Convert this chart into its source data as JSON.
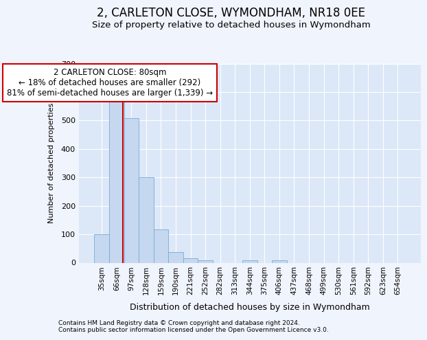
{
  "title": "2, CARLETON CLOSE, WYMONDHAM, NR18 0EE",
  "subtitle": "Size of property relative to detached houses in Wymondham",
  "xlabel": "Distribution of detached houses by size in Wymondham",
  "ylabel": "Number of detached properties",
  "footnote1": "Contains HM Land Registry data © Crown copyright and database right 2024.",
  "footnote2": "Contains public sector information licensed under the Open Government Licence v3.0.",
  "bin_labels": [
    "35sqm",
    "66sqm",
    "97sqm",
    "128sqm",
    "159sqm",
    "190sqm",
    "221sqm",
    "252sqm",
    "282sqm",
    "313sqm",
    "344sqm",
    "375sqm",
    "406sqm",
    "437sqm",
    "468sqm",
    "499sqm",
    "530sqm",
    "561sqm",
    "592sqm",
    "623sqm",
    "654sqm"
  ],
  "bar_values": [
    100,
    575,
    507,
    300,
    118,
    38,
    15,
    8,
    0,
    0,
    8,
    0,
    8,
    0,
    0,
    0,
    0,
    0,
    0,
    0,
    0
  ],
  "bar_color": "#c5d8f0",
  "bar_edge_color": "#7aaad0",
  "ylim": [
    0,
    700
  ],
  "yticks": [
    0,
    100,
    200,
    300,
    400,
    500,
    600,
    700
  ],
  "property_line_x": 1.43,
  "property_line_color": "#cc0000",
  "annotation_text": "2 CARLETON CLOSE: 80sqm\n← 18% of detached houses are smaller (292)\n81% of semi-detached houses are larger (1,339) →",
  "annotation_box_color": "#ffffff",
  "annotation_box_edge": "#cc0000",
  "bg_color": "#f0f4fc",
  "plot_bg_color": "#dce8f8",
  "grid_color": "#ffffff",
  "title_fontsize": 12,
  "subtitle_fontsize": 9.5,
  "annot_fontsize": 8.5,
  "ylabel_fontsize": 8,
  "xlabel_fontsize": 9,
  "tick_fontsize": 8,
  "footnote_fontsize": 6.5
}
